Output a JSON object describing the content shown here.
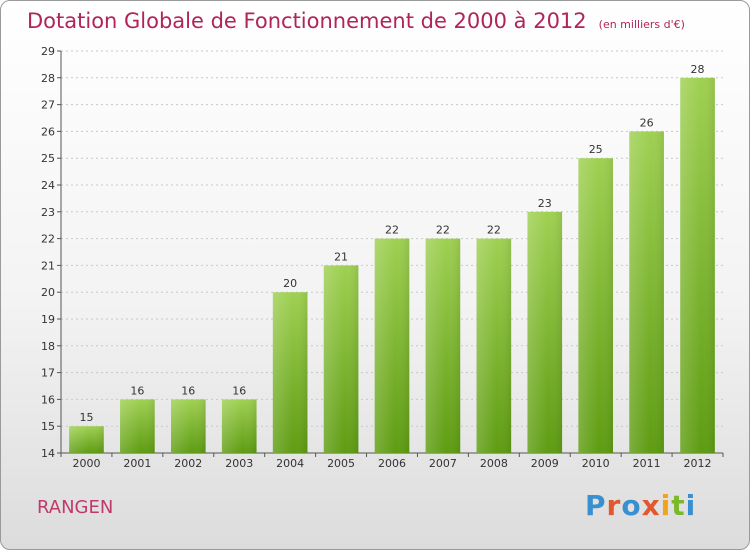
{
  "header": {
    "title": "Dotation Globale de Fonctionnement de 2000 à 2012",
    "subtitle": "(en milliers d'€)"
  },
  "footer": {
    "location": "RANGEN",
    "logo": "Proxiti"
  },
  "colors": {
    "bar_top": "#9fd052",
    "bar_bottom": "#5e9c12",
    "title": "#b0245a"
  },
  "chart_data": {
    "type": "bar",
    "title": "Dotation Globale de Fonctionnement de 2000 à 2012",
    "subtitle": "(en milliers d'€)",
    "xlabel": "",
    "ylabel": "",
    "categories": [
      "2000",
      "2001",
      "2002",
      "2003",
      "2004",
      "2005",
      "2006",
      "2007",
      "2008",
      "2009",
      "2010",
      "2011",
      "2012"
    ],
    "values": [
      15,
      16,
      16,
      16,
      20,
      21,
      22,
      22,
      22,
      23,
      25,
      26,
      28
    ],
    "ylim": [
      14,
      29
    ],
    "yticks": [
      14,
      15,
      16,
      17,
      18,
      19,
      20,
      21,
      22,
      23,
      24,
      25,
      26,
      27,
      28,
      29
    ],
    "grid": true,
    "legend": "none"
  }
}
